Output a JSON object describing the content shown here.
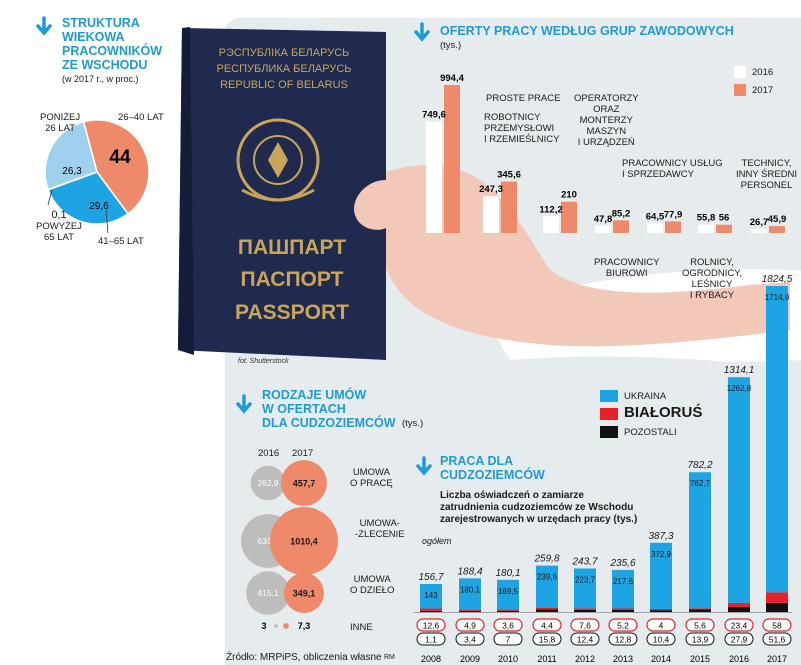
{
  "age": {
    "title_lines": [
      "STRUKTURA",
      "WIEKOWA",
      "PRACOWNIKÓW",
      "ZE WSCHODU"
    ],
    "subtitle": "(w 2017 r., w proc.)",
    "labels": {
      "under26": [
        "PONIŻEJ",
        "26 LAT"
      ],
      "a26_40": "26–40 LAT",
      "over65": [
        "0,1",
        "POWYŻEJ",
        "65 LAT"
      ],
      "a41_65": "41–65 LAT"
    },
    "values_text": {
      "a26_40": "44",
      "under26": "26,3",
      "a41_65": "29,6"
    },
    "colors": {
      "a26_40": "#ee8a69",
      "under26": "#9fd0ee",
      "a41_65": "#1ea4e3"
    }
  },
  "offers": {
    "title": "OFERTY PRACY WEDŁUG GRUP ZAWODOWYCH",
    "unit": "(tys.)",
    "legend": [
      "2016",
      "2017"
    ],
    "colors": {
      "2016": "#ffffff",
      "2017": "#ee8a69"
    },
    "groups": [
      {
        "v2016": "749,6",
        "v2017": "994,4",
        "label": [
          "PROSTE PRACE"
        ]
      },
      {
        "v2016": "247,3",
        "v2017": "345,6",
        "label": [
          "ROBOTNICY",
          "PRZEMYSŁOWI",
          "I RZEMIEŚLNICY"
        ]
      },
      {
        "v2016": "112,2",
        "v2017": "210",
        "label": [
          "OPERATORZY",
          "ORAZ",
          "MONTERZY",
          "MASZYN",
          "I URZĄDZEŃ"
        ]
      },
      {
        "v2016": "47,8",
        "v2017": "85,2",
        "label": [
          "PRACOWNICY",
          "BIUROWI"
        ]
      },
      {
        "v2016": "64,5",
        "v2017": "77,9",
        "label": [
          "PRACOWNICY USŁUG",
          "I SPRZEDAWCY"
        ]
      },
      {
        "v2016": "55,8",
        "v2017": "56",
        "label": [
          "ROLNICY,",
          "OGRODNICY,",
          "LEŚNICY",
          "I RYBACY"
        ]
      },
      {
        "v2016": "26,7",
        "v2017": "45,9",
        "label": [
          "TECHNICY,",
          "INNY ŚREDNI",
          "PERSONEL"
        ]
      }
    ]
  },
  "contracts": {
    "title_lines": [
      "RODZAJE UMÓW",
      "W OFERTACH",
      "DLA CUDZOZIEMCÓW"
    ],
    "unit": "(tys.)",
    "years": [
      "2016",
      "2017"
    ],
    "rows": [
      {
        "v2016": "262,9",
        "v2017": "457,7",
        "label": [
          "UMOWA",
          "O PRACĘ"
        ]
      },
      {
        "v2016": "633,1",
        "v2017": "1010,4",
        "label": [
          "UMOWA-",
          "-ZLECENIE"
        ]
      },
      {
        "v2016": "415,1",
        "v2017": "349,1",
        "label": [
          "UMOWA",
          "O DZIEŁO"
        ]
      },
      {
        "v2016": "3",
        "v2017": "7,3",
        "label": [
          "INNE"
        ]
      }
    ]
  },
  "work": {
    "title_lines": [
      "PRACA DLA",
      "CUDZOZIEMCÓW"
    ],
    "desc_lines": [
      "Liczba oświadczeń o zamiarze",
      "zatrudnienia cudzoziemców ze Wschodu",
      "zarejestrowanych w urzędach pracy (tys.)"
    ],
    "ogolem": "ogółem",
    "legend": {
      "ukraina": "UKRAINA",
      "bialorus": "BIAŁORUŚ",
      "pozostali": "POZOSTALI"
    },
    "colors": {
      "ukraina": "#1ea4e3",
      "bialorus": "#e8202a",
      "pozostali": "#111111"
    }
  },
  "source": "Źródło: MRPiPS, obliczenia własne",
  "initials": "RM",
  "photo_credit": "fot. Shutterstock",
  "passport": {
    "top_lines": [
      "РЭСПУБЛІКА БЕЛАРУСЬ",
      "РЕСПУБЛИКА БЕЛАРУСЬ",
      "REPUBLIC OF BELARUS"
    ],
    "bottom_lines": [
      "ПАШПАРТ",
      "ПАСПОРТ",
      "PASSPORT"
    ]
  },
  "chart_data": [
    {
      "type": "pie",
      "title": "STRUKTURA WIEKOWA PRACOWNIKÓW ZE WSCHODU",
      "subtitle": "(w 2017 r., w proc.)",
      "categories": [
        "26–40 LAT",
        "41–65 LAT",
        "POWYŻEJ 65 LAT",
        "PONIŻEJ 26 LAT"
      ],
      "values": [
        44,
        29.6,
        0.1,
        26.3
      ]
    },
    {
      "type": "bar",
      "title": "OFERTY PRACY WEDŁUG GRUP ZAWODOWYCH",
      "unit": "(tys.)",
      "categories": [
        "PROSTE PRACE",
        "ROBOTNICY PRZEMYSŁOWI I RZEMIEŚLNICY",
        "OPERATORZY ORAZ MONTERZY MASZYN I URZĄDZEŃ",
        "PRACOWNICY BIUROWI",
        "PRACOWNICY USŁUG I SPRZEDAWCY",
        "ROLNICY, OGRODNICY, LEŚNICY I RYBACY",
        "TECHNICY, INNY ŚREDNI PERSONEL"
      ],
      "series": [
        {
          "name": "2016",
          "values": [
            749.6,
            247.3,
            112.2,
            47.8,
            64.5,
            55.8,
            26.7
          ]
        },
        {
          "name": "2017",
          "values": [
            994.4,
            345.6,
            210,
            85.2,
            77.9,
            56,
            45.9
          ]
        }
      ]
    },
    {
      "type": "scatter",
      "title": "RODZAJE UMÓW W OFERTACH DLA CUDZOZIEMCÓW",
      "unit": "(tys.)",
      "categories": [
        "UMOWA O PRACĘ",
        "UMOWA-ZLECENIE",
        "UMOWA O DZIEŁO",
        "INNE"
      ],
      "series": [
        {
          "name": "2016",
          "values": [
            262.9,
            633.1,
            415.1,
            3
          ]
        },
        {
          "name": "2017",
          "values": [
            457.7,
            1010.4,
            349.1,
            7.3
          ]
        }
      ]
    },
    {
      "type": "bar",
      "title": "PRACA DLA CUDZOZIEMCÓW",
      "categories": [
        "2008",
        "2009",
        "2010",
        "2011",
        "2012",
        "2013",
        "2014",
        "2015",
        "2016",
        "2017"
      ],
      "totals": [
        156.7,
        188.4,
        180.1,
        259.8,
        243.7,
        235.6,
        387.3,
        782.2,
        1314.1,
        1824.5
      ],
      "total_labels": [
        "156,7",
        "188,4",
        "180,1",
        "259,8",
        "243,7",
        "235,6",
        "387,3",
        "782,2",
        "1314,1",
        "1824,5"
      ],
      "series": [
        {
          "name": "UKRAINA",
          "values": [
            143,
            180.1,
            169.5,
            239.6,
            223.7,
            217.6,
            372.9,
            762.7,
            1262.8,
            1714.9
          ],
          "labels": [
            "143",
            "180,1",
            "169,5",
            "239,6",
            "223,7",
            "217,6",
            "372,9",
            "762,7",
            "1262,8",
            "1714,9"
          ]
        },
        {
          "name": "BIAŁORUŚ",
          "values": [
            12.6,
            4.9,
            3.6,
            4.4,
            7.6,
            5.2,
            4,
            5.6,
            23.4,
            58
          ],
          "labels": [
            "12,6",
            "4,9",
            "3,6",
            "4,4",
            "7,6",
            "5,2",
            "4",
            "5,6",
            "23,4",
            "58"
          ]
        },
        {
          "name": "POZOSTALI",
          "values": [
            1.1,
            3.4,
            7,
            15.8,
            12.4,
            12.8,
            10.4,
            13.9,
            27.9,
            51.6
          ],
          "labels": [
            "1,1",
            "3,4",
            "7",
            "15,8",
            "12,4",
            "12,8",
            "10,4",
            "13,9",
            "27,9",
            "51,6"
          ]
        }
      ]
    }
  ]
}
